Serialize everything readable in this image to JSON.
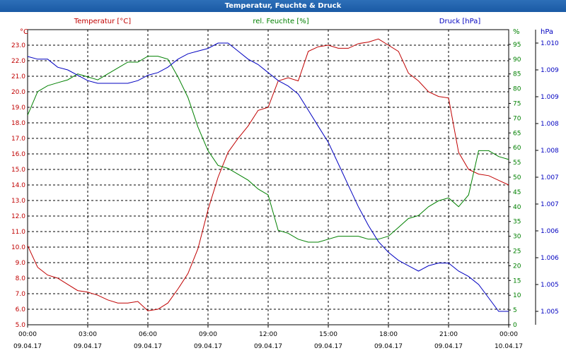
{
  "window": {
    "title": "Temperatur, Feuchte & Druck"
  },
  "chart_data": {
    "type": "line",
    "x_tick_times": [
      "00:00",
      "03:00",
      "06:00",
      "09:00",
      "12:00",
      "15:00",
      "18:00",
      "21:00",
      "00:00"
    ],
    "x_tick_dates": [
      "09.04.17",
      "09.04.17",
      "09.04.17",
      "09.04.17",
      "09.04.17",
      "09.04.17",
      "09.04.17",
      "09.04.17",
      "10.04.17"
    ],
    "x_range_hours": [
      0,
      24
    ],
    "grid": true,
    "axes": {
      "temperature": {
        "unit": "°C",
        "label": "Temperatur [°C]",
        "color": "#c00000",
        "position": "left",
        "ylim": [
          5.0,
          24.0
        ],
        "ticks": [
          "5.0",
          "6.0",
          "7.0",
          "8.0",
          "9.0",
          "10.0",
          "11.0",
          "12.0",
          "13.0",
          "14.0",
          "15.0",
          "16.0",
          "17.0",
          "18.0",
          "19.0",
          "20.0",
          "21.0",
          "22.0",
          "23.0"
        ]
      },
      "humidity": {
        "unit": "%",
        "label": "rel. Feuchte [%]",
        "color": "#008000",
        "position": "right",
        "ylim": [
          0,
          100
        ],
        "ticks": [
          "0",
          "5",
          "10",
          "15",
          "20",
          "25",
          "30",
          "35",
          "40",
          "45",
          "50",
          "55",
          "60",
          "65",
          "70",
          "75",
          "80",
          "85",
          "90",
          "95"
        ]
      },
      "pressure": {
        "unit": "hPa",
        "label": "Druck [hPa]",
        "color": "#0000c0",
        "position": "right-outer",
        "ylim": [
          1004.75,
          1010.25
        ],
        "ticks": [
          {
            "value": 1005.0,
            "label": "1.005"
          },
          {
            "value": 1005.5,
            "label": "1.005"
          },
          {
            "value": 1006.0,
            "label": "1.006"
          },
          {
            "value": 1006.5,
            "label": "1.006"
          },
          {
            "value": 1007.0,
            "label": "1.007"
          },
          {
            "value": 1007.5,
            "label": "1.007"
          },
          {
            "value": 1008.0,
            "label": "1.008"
          },
          {
            "value": 1008.5,
            "label": "1.008"
          },
          {
            "value": 1009.0,
            "label": "1.009"
          },
          {
            "value": 1009.5,
            "label": "1.009"
          },
          {
            "value": 1010.0,
            "label": "1.010"
          }
        ]
      }
    },
    "series": [
      {
        "name": "Temperatur [°C]",
        "axis": "temperature",
        "color": "#c00000",
        "x": [
          0,
          0.5,
          1,
          1.5,
          2,
          2.5,
          3,
          3.5,
          4,
          4.5,
          5,
          5.5,
          6,
          6.5,
          7,
          7.5,
          8,
          8.5,
          9,
          9.5,
          10,
          10.5,
          11,
          11.5,
          12,
          12.5,
          13,
          13.5,
          14,
          14.5,
          15,
          15.5,
          16,
          16.5,
          17,
          17.5,
          18,
          18.5,
          19,
          19.5,
          20,
          20.5,
          21,
          21.5,
          22,
          22.5,
          23,
          23.5,
          24
        ],
        "y": [
          10.1,
          8.7,
          8.2,
          8.0,
          7.6,
          7.2,
          7.1,
          6.9,
          6.6,
          6.4,
          6.4,
          6.5,
          5.9,
          6.0,
          6.4,
          7.3,
          8.3,
          9.9,
          12.4,
          14.5,
          16.1,
          17.0,
          17.8,
          18.8,
          19.0,
          20.7,
          20.9,
          20.7,
          22.6,
          22.9,
          23.0,
          22.8,
          22.8,
          23.1,
          23.2,
          23.4,
          23.0,
          22.6,
          21.2,
          20.7,
          20.0,
          19.7,
          19.6,
          16.1,
          15.0,
          14.7,
          14.6,
          14.3,
          14.0
        ]
      },
      {
        "name": "rel. Feuchte [%]",
        "axis": "humidity",
        "color": "#008000",
        "x": [
          0,
          0.5,
          1,
          1.5,
          2,
          2.5,
          3,
          3.5,
          4,
          4.5,
          5,
          5.5,
          6,
          6.5,
          7,
          7.5,
          8,
          8.5,
          9,
          9.5,
          10,
          10.5,
          11,
          11.5,
          12,
          12.5,
          13,
          13.5,
          14,
          14.5,
          15,
          15.5,
          16,
          16.5,
          17,
          17.5,
          18,
          18.5,
          19,
          19.5,
          20,
          20.5,
          21,
          21.5,
          22,
          22.5,
          23,
          23.5,
          24
        ],
        "y": [
          71,
          79,
          81,
          82,
          83,
          85,
          84,
          83,
          85,
          87,
          89,
          89,
          91,
          91,
          90,
          84,
          77,
          67,
          59,
          54,
          53,
          51,
          49,
          46,
          44,
          32,
          31,
          29,
          28,
          28,
          29,
          30,
          30,
          30,
          29,
          29,
          30,
          33,
          36,
          37,
          40,
          42,
          43,
          40,
          44,
          59,
          59,
          57,
          56
        ]
      },
      {
        "name": "Druck [hPa]",
        "axis": "pressure",
        "color": "#0000c0",
        "x": [
          0,
          0.5,
          1,
          1.5,
          2,
          2.5,
          3,
          3.5,
          4,
          4.5,
          5,
          5.5,
          6,
          6.5,
          7,
          7.5,
          8,
          8.5,
          9,
          9.5,
          10,
          10.5,
          11,
          11.5,
          12,
          12.5,
          13,
          13.5,
          14,
          14.5,
          15,
          15.5,
          16,
          16.5,
          17,
          17.5,
          18,
          18.5,
          19,
          19.5,
          20,
          20.5,
          21,
          21.5,
          22,
          22.5,
          23,
          23.5,
          24
        ],
        "y": [
          1009.75,
          1009.7,
          1009.7,
          1009.55,
          1009.5,
          1009.4,
          1009.3,
          1009.25,
          1009.25,
          1009.25,
          1009.25,
          1009.3,
          1009.4,
          1009.45,
          1009.55,
          1009.7,
          1009.8,
          1009.85,
          1009.9,
          1010.0,
          1010.0,
          1009.85,
          1009.7,
          1009.6,
          1009.45,
          1009.3,
          1009.2,
          1009.05,
          1008.75,
          1008.45,
          1008.15,
          1007.75,
          1007.35,
          1006.95,
          1006.6,
          1006.3,
          1006.1,
          1005.95,
          1005.85,
          1005.75,
          1005.85,
          1005.9,
          1005.9,
          1005.75,
          1005.65,
          1005.5,
          1005.25,
          1005.0,
          1005.0
        ]
      }
    ]
  }
}
